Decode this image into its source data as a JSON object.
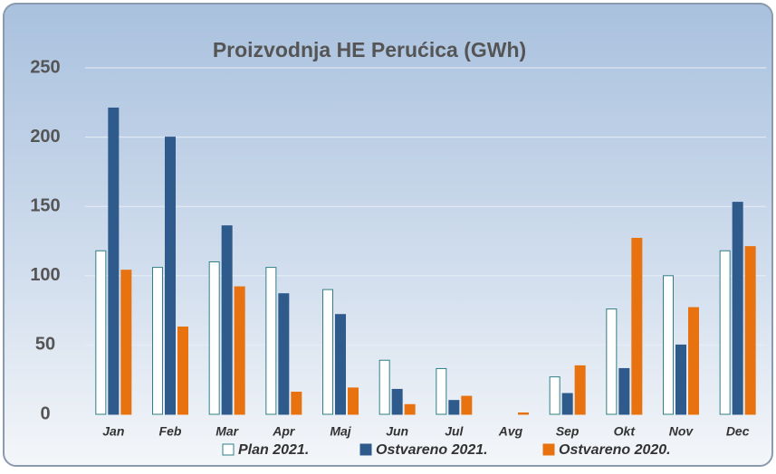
{
  "chart_data": {
    "type": "bar",
    "title": "Proizvodnja HE Perućica (GWh)",
    "categories": [
      "Jan",
      "Feb",
      "Mar",
      "Apr",
      "Maj",
      "Jun",
      "Jul",
      "Avg",
      "Sep",
      "Okt",
      "Nov",
      "Dec"
    ],
    "series": [
      {
        "name": "Plan 2021.",
        "color": "#ffffff",
        "edgecolor": "#2f7f86",
        "values": [
          118,
          106,
          110,
          106,
          90,
          39,
          33,
          0,
          27,
          76,
          100,
          118
        ]
      },
      {
        "name": "Ostvareno 2021.",
        "color": "#2e5a8c",
        "edgecolor": "#2e5a8c",
        "values": [
          221,
          200,
          136,
          87,
          72,
          18,
          10,
          0,
          15,
          33,
          50,
          153
        ]
      },
      {
        "name": "Ostvareno 2020.",
        "color": "#e8720f",
        "edgecolor": "#e8720f",
        "values": [
          104,
          63,
          92,
          16,
          19,
          7,
          13,
          1,
          35,
          127,
          77,
          121
        ]
      }
    ],
    "ylim": [
      0,
      250
    ],
    "yticks": [
      0,
      50,
      100,
      150,
      200,
      250
    ],
    "grid": true
  }
}
